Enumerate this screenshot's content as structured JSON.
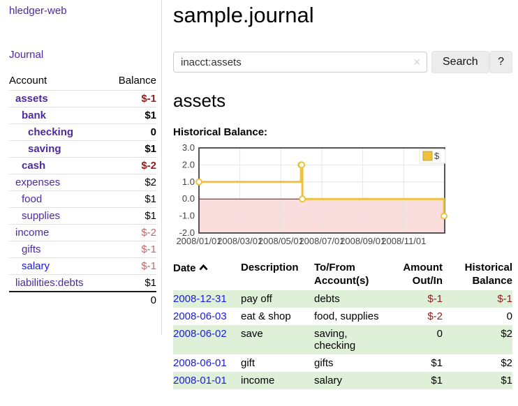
{
  "app": {
    "brand": "hledger-web"
  },
  "sidebar": {
    "journal_link": "Journal",
    "table_headers": {
      "account": "Account",
      "balance": "Balance"
    },
    "accounts": [
      {
        "name": "assets",
        "balance": "$-1"
      },
      {
        "name": "bank",
        "balance": "$1"
      },
      {
        "name": "checking",
        "balance": "0"
      },
      {
        "name": "saving",
        "balance": "$1"
      },
      {
        "name": "cash",
        "balance": "$-2"
      },
      {
        "name": "expenses",
        "balance": "$2"
      },
      {
        "name": "food",
        "balance": "$1"
      },
      {
        "name": "supplies",
        "balance": "$1"
      },
      {
        "name": "income",
        "balance": "$-2"
      },
      {
        "name": "gifts",
        "balance": "$-1"
      },
      {
        "name": "salary",
        "balance": "$-1"
      },
      {
        "name": "liabilities:debts",
        "balance": "$1"
      }
    ],
    "total": "0"
  },
  "header": {
    "title": "sample.journal"
  },
  "search": {
    "value": "inacct:assets",
    "clear_icon": "✕",
    "search_button": "Search",
    "help_button": "?"
  },
  "account_view": {
    "title": "assets",
    "chart_title": "Historical Balance:"
  },
  "chart_data": {
    "type": "line",
    "step": true,
    "title": "Historical Balance:",
    "series": [
      {
        "name": "$",
        "color": "#edc240",
        "points": [
          [
            "2008-01-01",
            1
          ],
          [
            "2008-06-01",
            2
          ],
          [
            "2008-06-02",
            2
          ],
          [
            "2008-06-03",
            0
          ],
          [
            "2008-12-31",
            -1
          ]
        ]
      }
    ],
    "x_range": [
      "2008-01-01",
      "2009-01-01"
    ],
    "ylim": [
      -2,
      3
    ],
    "x_ticks": [
      "2008/01/01",
      "2008/03/01",
      "2008/05/01",
      "2008/07/01",
      "2008/09/01",
      "2008/11/01"
    ],
    "y_ticks": [
      "3.0",
      "2.0",
      "1.0",
      "0.0",
      "-1.0",
      "-2.0"
    ],
    "grid": true,
    "legend": {
      "label": "$",
      "position": "top-right"
    },
    "negative_region_fill": "#fadddd",
    "zero_line_color": "#8b0000",
    "border_color": "#555555",
    "grid_color": "#e6e6e6"
  },
  "register": {
    "headers": {
      "date": "Date",
      "description": "Description",
      "accounts": "To/From Account(s)",
      "amount": "Amount Out/In",
      "balance": "Historical Balance"
    },
    "rows": [
      {
        "date": "2008-12-31",
        "description": "pay off",
        "accounts": "debts",
        "amount": "$-1",
        "balance": "$-1"
      },
      {
        "date": "2008-06-03",
        "description": "eat & shop",
        "accounts": "food, supplies",
        "amount": "$-2",
        "balance": "0"
      },
      {
        "date": "2008-06-02",
        "description": "save",
        "accounts": "saving, checking",
        "amount": "0",
        "balance": "$2"
      },
      {
        "date": "2008-06-01",
        "description": "gift",
        "accounts": "gifts",
        "amount": "$1",
        "balance": "$2"
      },
      {
        "date": "2008-01-01",
        "description": "income",
        "accounts": "salary",
        "amount": "$1",
        "balance": "$1"
      }
    ]
  },
  "colors": {
    "link_purple": "#4c2a9e",
    "link_blue": "#1a1ae6",
    "negative_strong": "#8f1d1d",
    "negative_soft": "#bf6a70",
    "row_stripe_green": "#dff0d8",
    "series_gold": "#edc240"
  }
}
